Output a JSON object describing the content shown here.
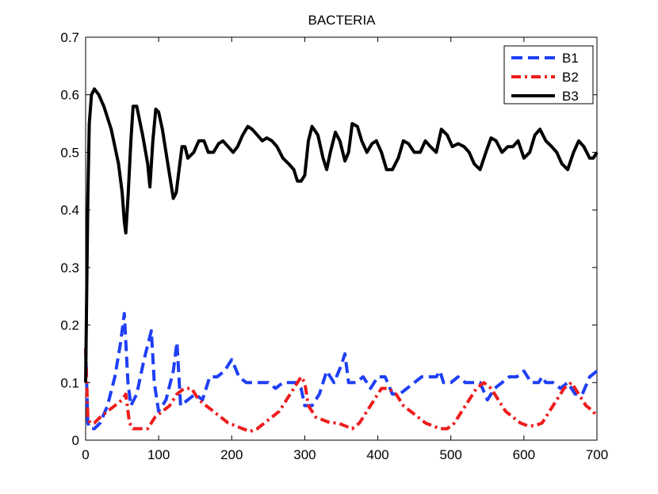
{
  "chart_data": {
    "type": "line",
    "title": "BACTERIA",
    "xlabel": "",
    "ylabel": "",
    "xlim": [
      0,
      700
    ],
    "ylim": [
      0,
      0.7
    ],
    "xticks": [
      0,
      100,
      200,
      300,
      400,
      500,
      600,
      700
    ],
    "yticks": [
      0,
      0.1,
      0.2,
      0.3,
      0.4,
      0.5,
      0.6,
      0.7
    ],
    "xtick_labels": [
      "0",
      "100",
      "200",
      "300",
      "400",
      "500",
      "600",
      "700"
    ],
    "ytick_labels": [
      "0",
      "0.1",
      "0.2",
      "0.3",
      "0.4",
      "0.5",
      "0.6",
      "0.7"
    ],
    "grid": false,
    "legend_position": "top-right",
    "series": [
      {
        "name": "B1",
        "color": "#1f3ff5",
        "style": "dashed",
        "x": [
          0,
          3,
          6,
          12,
          20,
          30,
          40,
          48,
          53,
          58,
          62,
          70,
          80,
          90,
          94,
          100,
          110,
          120,
          125,
          130,
          140,
          150,
          160,
          170,
          180,
          190,
          200,
          210,
          220,
          230,
          240,
          250,
          260,
          270,
          280,
          290,
          295,
          300,
          305,
          310,
          320,
          330,
          340,
          350,
          355,
          360,
          370,
          380,
          390,
          400,
          410,
          420,
          430,
          440,
          450,
          460,
          470,
          480,
          485,
          490,
          500,
          510,
          520,
          530,
          540,
          550,
          560,
          570,
          580,
          590,
          600,
          610,
          620,
          625,
          630,
          640,
          650,
          660,
          670,
          680,
          690,
          700
        ],
        "y": [
          0.16,
          0.03,
          0.02,
          0.02,
          0.03,
          0.06,
          0.11,
          0.17,
          0.22,
          0.1,
          0.06,
          0.08,
          0.14,
          0.19,
          0.1,
          0.05,
          0.07,
          0.12,
          0.17,
          0.06,
          0.07,
          0.08,
          0.07,
          0.11,
          0.11,
          0.12,
          0.14,
          0.11,
          0.1,
          0.1,
          0.1,
          0.1,
          0.09,
          0.1,
          0.1,
          0.1,
          0.09,
          0.06,
          0.06,
          0.06,
          0.08,
          0.12,
          0.1,
          0.13,
          0.15,
          0.1,
          0.1,
          0.11,
          0.09,
          0.11,
          0.11,
          0.08,
          0.08,
          0.09,
          0.1,
          0.11,
          0.11,
          0.11,
          0.12,
          0.1,
          0.1,
          0.11,
          0.1,
          0.1,
          0.1,
          0.07,
          0.09,
          0.1,
          0.11,
          0.11,
          0.12,
          0.1,
          0.1,
          0.11,
          0.1,
          0.1,
          0.09,
          0.1,
          0.08,
          0.08,
          0.11,
          0.12
        ]
      },
      {
        "name": "B2",
        "color": "#ee1c1c",
        "style": "dashdot",
        "x": [
          0,
          3,
          6,
          12,
          20,
          30,
          40,
          50,
          55,
          60,
          65,
          75,
          85,
          95,
          105,
          115,
          125,
          135,
          145,
          155,
          165,
          175,
          185,
          195,
          205,
          215,
          225,
          235,
          245,
          255,
          265,
          275,
          285,
          290,
          295,
          300,
          305,
          315,
          325,
          335,
          345,
          355,
          365,
          375,
          385,
          395,
          405,
          415,
          425,
          435,
          445,
          455,
          465,
          475,
          485,
          495,
          505,
          515,
          525,
          535,
          545,
          555,
          565,
          575,
          585,
          595,
          605,
          615,
          625,
          635,
          645,
          655,
          665,
          675,
          685,
          695,
          700
        ],
        "y": [
          0.16,
          0.04,
          0.03,
          0.03,
          0.04,
          0.05,
          0.06,
          0.07,
          0.08,
          0.03,
          0.02,
          0.02,
          0.02,
          0.04,
          0.05,
          0.06,
          0.08,
          0.09,
          0.09,
          0.07,
          0.06,
          0.05,
          0.04,
          0.03,
          0.025,
          0.02,
          0.015,
          0.02,
          0.03,
          0.04,
          0.05,
          0.07,
          0.09,
          0.1,
          0.11,
          0.1,
          0.06,
          0.04,
          0.035,
          0.03,
          0.03,
          0.025,
          0.02,
          0.03,
          0.05,
          0.07,
          0.09,
          0.09,
          0.08,
          0.06,
          0.05,
          0.04,
          0.03,
          0.025,
          0.02,
          0.02,
          0.03,
          0.05,
          0.07,
          0.09,
          0.1,
          0.09,
          0.07,
          0.05,
          0.04,
          0.03,
          0.025,
          0.025,
          0.03,
          0.05,
          0.07,
          0.09,
          0.1,
          0.08,
          0.06,
          0.05,
          0.04
        ]
      },
      {
        "name": "B3",
        "color": "#000000",
        "style": "solid",
        "x": [
          0,
          3,
          5,
          8,
          12,
          18,
          25,
          35,
          45,
          50,
          53,
          55,
          58,
          62,
          65,
          70,
          78,
          85,
          88,
          92,
          96,
          100,
          105,
          110,
          115,
          120,
          124,
          128,
          132,
          136,
          140,
          148,
          155,
          162,
          168,
          175,
          182,
          188,
          195,
          202,
          208,
          215,
          222,
          228,
          235,
          242,
          248,
          255,
          262,
          270,
          278,
          285,
          290,
          295,
          300,
          305,
          310,
          318,
          325,
          330,
          335,
          342,
          348,
          355,
          360,
          365,
          372,
          378,
          385,
          392,
          398,
          405,
          412,
          420,
          428,
          435,
          442,
          450,
          458,
          465,
          472,
          480,
          487,
          495,
          502,
          510,
          518,
          525,
          532,
          540,
          548,
          555,
          562,
          570,
          578,
          585,
          592,
          600,
          608,
          615,
          622,
          630,
          638,
          645,
          652,
          660,
          668,
          675,
          682,
          690,
          695,
          700
        ],
        "y": [
          0.1,
          0.42,
          0.55,
          0.6,
          0.61,
          0.6,
          0.58,
          0.54,
          0.48,
          0.43,
          0.38,
          0.36,
          0.42,
          0.52,
          0.58,
          0.58,
          0.53,
          0.48,
          0.44,
          0.52,
          0.575,
          0.57,
          0.54,
          0.5,
          0.46,
          0.42,
          0.43,
          0.47,
          0.51,
          0.51,
          0.49,
          0.5,
          0.52,
          0.52,
          0.5,
          0.5,
          0.515,
          0.52,
          0.51,
          0.5,
          0.51,
          0.53,
          0.545,
          0.54,
          0.53,
          0.52,
          0.525,
          0.52,
          0.51,
          0.49,
          0.48,
          0.47,
          0.45,
          0.45,
          0.46,
          0.52,
          0.545,
          0.53,
          0.49,
          0.47,
          0.5,
          0.535,
          0.52,
          0.485,
          0.5,
          0.55,
          0.545,
          0.52,
          0.5,
          0.515,
          0.52,
          0.5,
          0.47,
          0.47,
          0.49,
          0.52,
          0.515,
          0.5,
          0.5,
          0.52,
          0.51,
          0.5,
          0.54,
          0.53,
          0.51,
          0.515,
          0.51,
          0.5,
          0.48,
          0.47,
          0.5,
          0.525,
          0.52,
          0.5,
          0.51,
          0.51,
          0.52,
          0.49,
          0.5,
          0.53,
          0.54,
          0.52,
          0.51,
          0.5,
          0.48,
          0.47,
          0.5,
          0.52,
          0.51,
          0.49,
          0.49,
          0.5
        ]
      }
    ]
  }
}
